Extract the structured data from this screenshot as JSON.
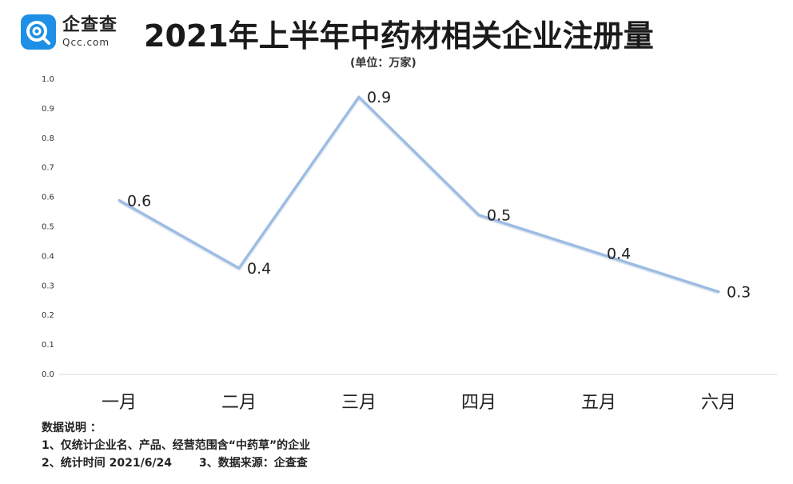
{
  "brand": {
    "name_cn": "企查查",
    "name_en": "Qcc.com",
    "icon": "qcc-logo-icon",
    "color": "#1d8fe6"
  },
  "title": "2021年上半年中药材相关企业注册量",
  "unit": "(单位：万家)",
  "notes": {
    "heading": "数据说明 ：",
    "line1": "1、仅统计企业名、产品、经营范围含“中药草”的企业",
    "line2a": "2、统计时间 2021/6/24",
    "line2b": "3、数据来源：企查查"
  },
  "chart_data": {
    "type": "line",
    "categories": [
      "一月",
      "二月",
      "三月",
      "四月",
      "五月",
      "六月"
    ],
    "values": [
      0.59,
      0.36,
      0.94,
      0.54,
      0.41,
      0.28
    ],
    "data_labels": [
      "0.6",
      "0.4",
      "0.9",
      "0.5",
      "0.4",
      "0.3"
    ],
    "yticks": [
      "0.0",
      "0.1",
      "0.2",
      "0.3",
      "0.4",
      "0.5",
      "0.6",
      "0.7",
      "0.8",
      "0.9",
      "1.0"
    ],
    "ylim": [
      0,
      1.0
    ],
    "grid": false,
    "line_color": "#9bbbe3"
  }
}
